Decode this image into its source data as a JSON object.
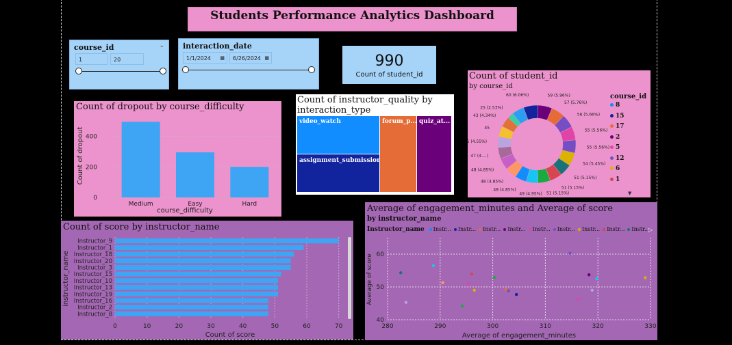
{
  "title": "Students Performance Analytics Dashboard",
  "slicer_course": {
    "label": "course_id",
    "min": "1",
    "max": "20",
    "low_fraction": 0.0,
    "high_fraction": 1.0
  },
  "slicer_date": {
    "label": "interaction_date",
    "start": "1/1/2024",
    "end": "6/26/2024",
    "low_fraction": 0.0,
    "high_fraction": 1.0
  },
  "kpi": {
    "value": "990",
    "label": "Count of student_id"
  },
  "dropout": {
    "title": "Count of dropout by course_difficulty",
    "color": "#3ea4f4",
    "bg": "#ec92cc"
  },
  "treemap": {
    "title_line1": "Count of instructor_quality by",
    "title_line2": "interaction_type",
    "tiles": [
      {
        "label": "video_watch",
        "color": "#118dff"
      },
      {
        "label": "assignment_submission",
        "color": "#12239e"
      },
      {
        "label": "forum_p...",
        "color": "#e66c37"
      },
      {
        "label": "quiz_at...",
        "color": "#6b007b"
      }
    ]
  },
  "donut": {
    "title": "Count of student_id",
    "subtitle": "by course_id",
    "legend_title": "course_id",
    "legend": [
      {
        "label": "8",
        "color": "#118dff"
      },
      {
        "label": "15",
        "color": "#12239e"
      },
      {
        "label": "17",
        "color": "#e66c37"
      },
      {
        "label": "2",
        "color": "#6b007b"
      },
      {
        "label": "5",
        "color": "#e044a7"
      },
      {
        "label": "12",
        "color": "#744ec2"
      },
      {
        "label": "6",
        "color": "#d9b300"
      },
      {
        "label": "1",
        "color": "#d64550"
      }
    ]
  },
  "score_bar": {
    "title": "Count of score by instructor_name",
    "color": "#3ea4f4"
  },
  "scatter": {
    "title": "Average of engagement_minutes and Average of score",
    "subtitle": "by instructor_name",
    "legend_title": "Instructor_name",
    "legend_items": [
      "Instr...",
      "Instr...",
      "Instr...",
      "Instr...",
      "Instr...",
      "Instr...",
      "Instr...",
      "Instr...",
      "Instr..."
    ],
    "legend_colors": [
      "#118dff",
      "#12239e",
      "#e66c37",
      "#6b007b",
      "#e044a7",
      "#744ec2",
      "#d9b300",
      "#d64550",
      "#197278"
    ]
  },
  "chart_data": [
    {
      "type": "bar",
      "title": "Count of dropout by course_difficulty",
      "categories": [
        "Medium",
        "Easy",
        "Hard"
      ],
      "values": [
        495,
        295,
        200
      ],
      "xlabel": "course_difficulty",
      "ylabel": "Count of dropout",
      "ylim": [
        0,
        550
      ],
      "yticks": [
        0,
        200,
        400
      ],
      "grid": true
    },
    {
      "type": "pie",
      "title": "Count of student_id",
      "subtitle": "by course_id",
      "slices": [
        {
          "label": "60 (6.06%)",
          "value": 60,
          "color": "#12239e"
        },
        {
          "label": "59 (5.96%)",
          "value": 59,
          "color": "#6b007b"
        },
        {
          "label": "57 (5.76%)",
          "value": 57,
          "color": "#e66c37"
        },
        {
          "label": "56 (5.66%)",
          "value": 56,
          "color": "#744ec2"
        },
        {
          "label": "55 (5.56%)",
          "value": 55,
          "color": "#e044a7"
        },
        {
          "label": "55 (5.56%)",
          "value": 55,
          "color": "#744ec2"
        },
        {
          "label": "54 (5.45%)",
          "value": 54,
          "color": "#d9b300"
        },
        {
          "label": "51 (5.15%)",
          "value": 51,
          "color": "#197278"
        },
        {
          "label": "51 (5.15%)",
          "value": 51,
          "color": "#d64550"
        },
        {
          "label": "51 (5.15%)",
          "value": 51,
          "color": "#1aab40"
        },
        {
          "label": "49 (4.95%)",
          "value": 49,
          "color": "#15c6f4"
        },
        {
          "label": "48 (4.85%)",
          "value": 48,
          "color": "#118dff"
        },
        {
          "label": "48 (4.85%)",
          "value": 48,
          "color": "#fe9666"
        },
        {
          "label": "48 (4.85%)",
          "value": 48,
          "color": "#c65fc8"
        },
        {
          "label": "47 (4....)",
          "value": 47,
          "color": "#a66999"
        },
        {
          "label": "45 (4.55%)",
          "value": 45,
          "color": "#b8a4e0"
        },
        {
          "label": "45",
          "value": 45,
          "color": "#f3c12f"
        },
        {
          "label": "43 (4.34%)",
          "value": 43,
          "color": "#e07238"
        },
        {
          "label": "25 (2.53%)",
          "value": 25,
          "color": "#35d0a8"
        },
        {
          "label": "",
          "value": 50,
          "color": "#2a9ef0"
        }
      ]
    },
    {
      "type": "bar",
      "orientation": "horizontal",
      "title": "Count of score by instructor_name",
      "categories": [
        "Instructor_9",
        "Instructor_1",
        "Instructor_18",
        "Instructor_20",
        "Instructor_3",
        "Instructor_15",
        "Instructor_10",
        "Instructor_13",
        "Instructor_19",
        "Instructor_16",
        "Instructor_2",
        "Instructor_8"
      ],
      "values": [
        70,
        59,
        56,
        55,
        55,
        52,
        51,
        51,
        51,
        48,
        48,
        48
      ],
      "xlabel": "Count of score",
      "ylabel": "instructor_name",
      "xlim": [
        0,
        72
      ],
      "xticks": [
        0,
        10,
        20,
        30,
        40,
        50,
        60,
        70
      ],
      "grid": true
    },
    {
      "type": "scatter",
      "title": "Average of engagement_minutes and Average of score",
      "xlabel": "Average of engagement_minutes",
      "ylabel": "Average of score",
      "xlim": [
        280,
        330
      ],
      "ylim": [
        40,
        65
      ],
      "xticks": [
        280,
        290,
        300,
        310,
        320,
        330
      ],
      "yticks": [
        40,
        50,
        60
      ],
      "points": [
        {
          "x": 282.5,
          "y": 54.3,
          "color": "#197278"
        },
        {
          "x": 283.5,
          "y": 45.3,
          "color": "#b8a4e0"
        },
        {
          "x": 288.7,
          "y": 56.5,
          "color": "#15c6f4"
        },
        {
          "x": 290.5,
          "y": 51.3,
          "color": "#fe9666"
        },
        {
          "x": 294.2,
          "y": 44.2,
          "color": "#1aab40"
        },
        {
          "x": 295.4,
          "y": 51.0,
          "color": "#e044a7"
        },
        {
          "x": 296.0,
          "y": 53.9,
          "color": "#d64550"
        },
        {
          "x": 296.5,
          "y": 49.0,
          "color": "#d9b300"
        },
        {
          "x": 300.3,
          "y": 52.9,
          "color": "#1aab40"
        },
        {
          "x": 302.5,
          "y": 49.4,
          "color": "#e66c37"
        },
        {
          "x": 303.0,
          "y": 48.8,
          "color": "#744ec2"
        },
        {
          "x": 304.5,
          "y": 47.7,
          "color": "#12239e"
        },
        {
          "x": 314.7,
          "y": 60.3,
          "color": "#744ec2"
        },
        {
          "x": 316.2,
          "y": 46.2,
          "color": "#e044a7"
        },
        {
          "x": 318.3,
          "y": 53.7,
          "color": "#6b007b"
        },
        {
          "x": 318.9,
          "y": 49.0,
          "color": "#b8a4e0"
        },
        {
          "x": 319.8,
          "y": 52.5,
          "color": "#15c6f4"
        },
        {
          "x": 329.0,
          "y": 52.8,
          "color": "#d9b300"
        }
      ]
    }
  ]
}
